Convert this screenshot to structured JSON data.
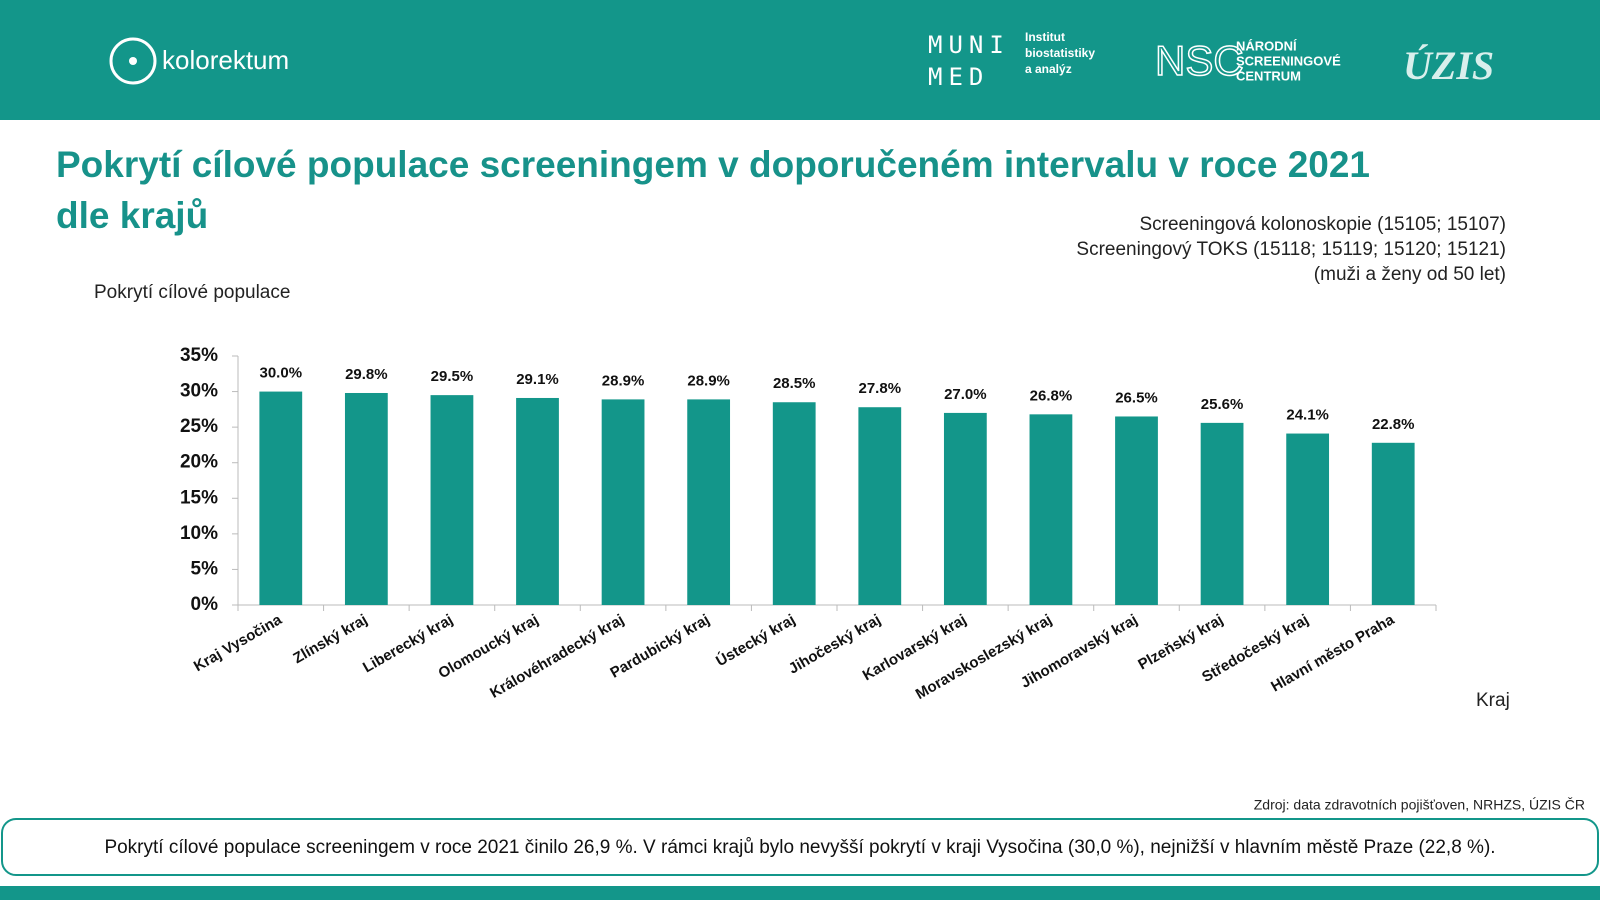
{
  "header": {
    "brand": "kolorektum",
    "muni_top": "MUNI",
    "muni_bottom": "MED",
    "institute": [
      "Institut",
      "biostatistiky",
      "a analýz"
    ],
    "nsc_mark": "NSC",
    "nsc_name": [
      "NÁRODNÍ",
      "SCREENINGOVÉ",
      "CENTRUM"
    ],
    "uzis": "ÚZIS"
  },
  "chart_data": {
    "type": "bar",
    "title": [
      "Pokrytí cílové populace screeningem v doporučeném intervalu v roce 2021",
      "dle krajů"
    ],
    "subtitle": [
      "Screeningová kolonoskopie (15105; 15107)",
      "Screeningový TOKS (15118; 15119; 15120; 15121)",
      "(muži a ženy od 50 let)"
    ],
    "y_label": "Pokrytí cílové populace",
    "x_label": "Kraj",
    "categories": [
      "Kraj Vysočina",
      "Zlínský kraj",
      "Liberecký kraj",
      "Olomoucký kraj",
      "Královéhradecký kraj",
      "Pardubický kraj",
      "Ústecký kraj",
      "Jihočeský kraj",
      "Karlovarský kraj",
      "Moravskoslezský kraj",
      "Jihomoravský kraj",
      "Plzeňský kraj",
      "Středočeský kraj",
      "Hlavní město Praha"
    ],
    "values": [
      30.0,
      29.8,
      29.5,
      29.1,
      28.9,
      28.9,
      28.5,
      27.8,
      27.0,
      26.8,
      26.5,
      25.6,
      24.1,
      22.8
    ],
    "value_labels": [
      "30.0%",
      "29.8%",
      "29.5%",
      "29.1%",
      "28.9%",
      "28.9%",
      "28.5%",
      "27.8%",
      "27.0%",
      "26.8%",
      "26.5%",
      "25.6%",
      "24.1%",
      "22.8%"
    ],
    "color": "#13968a",
    "ylim": [
      0,
      35
    ],
    "yticks": [
      {
        "value": 0,
        "label": "0%"
      },
      {
        "value": 5,
        "label": "5%"
      },
      {
        "value": 10,
        "label": "10%"
      },
      {
        "value": 15,
        "label": "15%"
      },
      {
        "value": 20,
        "label": "20%"
      },
      {
        "value": 25,
        "label": "25%"
      },
      {
        "value": 30,
        "label": "30%"
      },
      {
        "value": 35,
        "label": "35%"
      }
    ],
    "grid": false
  },
  "footer": {
    "source": "Zdroj: data zdravotních pojišťoven, NRHZS, ÚZIS ČR",
    "note": "Pokrytí cílové populace screeningem v roce 2021 činilo 26,9 %. V rámci krajů bylo nevyšší pokrytí v kraji Vysočina (30,0 %), nejnižší v hlavním městě Praze (22,8 %)."
  }
}
